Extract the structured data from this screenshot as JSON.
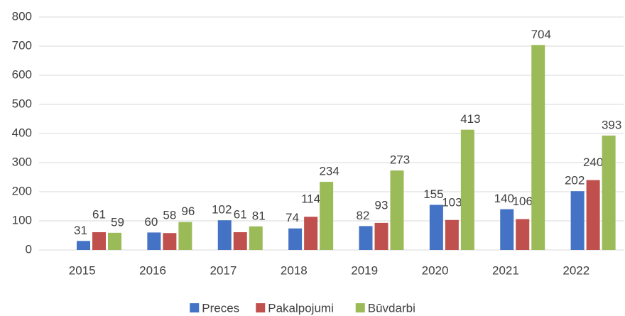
{
  "chart_data": {
    "type": "bar",
    "categories": [
      "2015",
      "2016",
      "2017",
      "2018",
      "2019",
      "2020",
      "2021",
      "2022"
    ],
    "series": [
      {
        "name": "Preces",
        "color": "#4472c4",
        "values": [
          31,
          60,
          102,
          74,
          82,
          155,
          140,
          202
        ]
      },
      {
        "name": "Pakalpojumi",
        "color": "#c0504d",
        "values": [
          61,
          58,
          61,
          114,
          93,
          103,
          106,
          240
        ]
      },
      {
        "name": "Būvdarbi",
        "color": "#9bbb59",
        "values": [
          59,
          96,
          81,
          234,
          273,
          413,
          704,
          393
        ]
      }
    ],
    "ylim": [
      0,
      800
    ],
    "yticks": [
      0,
      100,
      200,
      300,
      400,
      500,
      600,
      700,
      800
    ],
    "grid": true,
    "legend": "bottom"
  }
}
